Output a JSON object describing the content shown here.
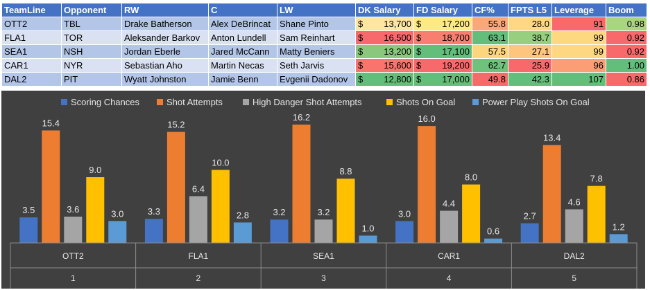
{
  "table": {
    "headers": [
      "TeamLine",
      "Opponent",
      "RW",
      "C",
      "LW",
      "DK Salary",
      "FD Salary",
      "CF%",
      "FPTS L5",
      "Leverage",
      "Boom"
    ],
    "currency_symbol": "$",
    "rows": [
      {
        "teamline": "OTT2",
        "opponent": "TBL",
        "rw": "Drake Batherson",
        "c": "Alex DeBrincat",
        "lw": "Shane Pinto",
        "dk_salary": "13,700",
        "fd_salary": "17,200",
        "cf_pct": "55.8",
        "fpts_l5": "28.0",
        "leverage": "91",
        "boom": "0.98"
      },
      {
        "teamline": "FLA1",
        "opponent": "TOR",
        "rw": "Aleksander Barkov",
        "c": "Anton Lundell",
        "lw": "Sam Reinhart",
        "dk_salary": "16,500",
        "fd_salary": "18,700",
        "cf_pct": "63.1",
        "fpts_l5": "38.7",
        "leverage": "99",
        "boom": "0.92"
      },
      {
        "teamline": "SEA1",
        "opponent": "NSH",
        "rw": "Jordan Eberle",
        "c": "Jared McCann",
        "lw": "Matty Beniers",
        "dk_salary": "13,200",
        "fd_salary": "17,100",
        "cf_pct": "57.5",
        "fpts_l5": "27.1",
        "leverage": "99",
        "boom": "0.92"
      },
      {
        "teamline": "CAR1",
        "opponent": "NYR",
        "rw": "Sebastian Aho",
        "c": "Martin Necas",
        "lw": "Seth Jarvis",
        "dk_salary": "15,600",
        "fd_salary": "19,200",
        "cf_pct": "62.7",
        "fpts_l5": "25.9",
        "leverage": "96",
        "boom": "1.00"
      },
      {
        "teamline": "DAL2",
        "opponent": "PIT",
        "rw": "Wyatt Johnston",
        "c": "Jamie Benn",
        "lw": "Evgenii Dadonov",
        "dk_salary": "12,800",
        "fd_salary": "17,000",
        "cf_pct": "49.8",
        "fpts_l5": "42.3",
        "leverage": "107",
        "boom": "0.86"
      }
    ],
    "cell_colors": {
      "dk_salary": [
        "#fde6a3",
        "#f8696b",
        "#8ac97d",
        "#f8746d",
        "#63be7b"
      ],
      "fd_salary": [
        "#feea83",
        "#f87f6f",
        "#63be7b",
        "#f8696b",
        "#63be7b"
      ],
      "cf_pct": [
        "#fba878",
        "#63be7b",
        "#fcd57f",
        "#6fc27c",
        "#f8696b"
      ],
      "fpts_l5": [
        "#fed880",
        "#96d07f",
        "#fdc57d",
        "#f8696b",
        "#63be7b"
      ],
      "leverage": [
        "#f8696b",
        "#fed880",
        "#fed880",
        "#fb9d75",
        "#63be7b"
      ],
      "boom": [
        "#aad580",
        "#f8696b",
        "#f8696b",
        "#63be7b",
        "#f8696b"
      ]
    }
  },
  "chart_data": {
    "type": "bar",
    "categories": [
      "OTT2",
      "FLA1",
      "SEA1",
      "CAR1",
      "DAL2"
    ],
    "sub_categories": [
      "1",
      "2",
      "3",
      "4",
      "5"
    ],
    "series": [
      {
        "name": "Scoring Chances",
        "color": "#4472c4",
        "values": [
          3.5,
          3.3,
          3.2,
          3.0,
          2.7
        ]
      },
      {
        "name": "Shot Attempts",
        "color": "#ed7d31",
        "values": [
          15.4,
          15.2,
          16.2,
          16.0,
          13.4
        ]
      },
      {
        "name": "High Danger Shot Attempts",
        "color": "#a5a5a5",
        "values": [
          3.6,
          6.4,
          3.2,
          4.4,
          4.6
        ]
      },
      {
        "name": "Shots On Goal",
        "color": "#ffc000",
        "values": [
          9.0,
          10.0,
          8.8,
          8.0,
          7.8
        ]
      },
      {
        "name": "Power Play Shots On Goal",
        "color": "#5b9bd5",
        "values": [
          3.0,
          2.8,
          1.0,
          0.6,
          1.2
        ]
      }
    ],
    "ylim": [
      0,
      18
    ],
    "legend_position": "top",
    "grid": false,
    "background": "#404040"
  }
}
